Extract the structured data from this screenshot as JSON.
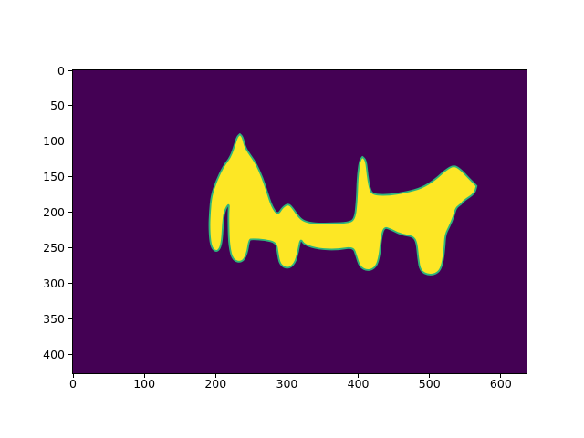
{
  "figure": {
    "title": "",
    "background_color": "#ffffff"
  },
  "chart_data": {
    "type": "heatmap",
    "subtype": "binary-segmentation-mask",
    "description": "matplotlib imshow of a binary segmentation mask with viridis colormap: a yellow connected region (value 1) shaped like two animals (left: cat-like animal with a pointed ear facing left; right: dog facing right with raised tail) on a dark purple background (value 0)",
    "title": "",
    "xlabel": "",
    "ylabel": "",
    "grid": false,
    "legend": null,
    "x_ticks": [
      0,
      100,
      200,
      300,
      400,
      500,
      600
    ],
    "y_ticks": [
      0,
      50,
      100,
      150,
      200,
      250,
      300,
      350,
      400
    ],
    "x_range": [
      0,
      636
    ],
    "y_range": [
      0,
      427
    ],
    "colors": {
      "background_value_0": "#440154",
      "mask_value_1": "#fde725",
      "mask_edge_antialias": "#2fb47c",
      "tick_color": "#000000",
      "spine_color": "#000000"
    },
    "mask_polygon_data_coords": [
      [
        234,
        90
      ],
      [
        234,
        90
      ],
      [
        238,
        94
      ],
      [
        241,
        107
      ],
      [
        246,
        116
      ],
      [
        256,
        130
      ],
      [
        266,
        152
      ],
      [
        273,
        174
      ],
      [
        279,
        192
      ],
      [
        287,
        204
      ],
      [
        294,
        193
      ],
      [
        302,
        188
      ],
      [
        308,
        194
      ],
      [
        316,
        206
      ],
      [
        324,
        213
      ],
      [
        339,
        216
      ],
      [
        358,
        216
      ],
      [
        384,
        215
      ],
      [
        395,
        211
      ],
      [
        398,
        184
      ],
      [
        399,
        152
      ],
      [
        402,
        127
      ],
      [
        406,
        122
      ],
      [
        406,
        122
      ],
      [
        411,
        127
      ],
      [
        413,
        148
      ],
      [
        416,
        166
      ],
      [
        420,
        175
      ],
      [
        441,
        176
      ],
      [
        467,
        172
      ],
      [
        489,
        166
      ],
      [
        508,
        154
      ],
      [
        523,
        140
      ],
      [
        534,
        134
      ],
      [
        543,
        139
      ],
      [
        555,
        152
      ],
      [
        566,
        163
      ],
      [
        566,
        163
      ],
      [
        563,
        174
      ],
      [
        549,
        183
      ],
      [
        544,
        189
      ],
      [
        537,
        194
      ],
      [
        534,
        206
      ],
      [
        528,
        220
      ],
      [
        522,
        232
      ],
      [
        521,
        251
      ],
      [
        518,
        274
      ],
      [
        512,
        286
      ],
      [
        499,
        289
      ],
      [
        487,
        283
      ],
      [
        484,
        265
      ],
      [
        482,
        243
      ],
      [
        477,
        234
      ],
      [
        461,
        232
      ],
      [
        445,
        224
      ],
      [
        436,
        221
      ],
      [
        432,
        238
      ],
      [
        430,
        261
      ],
      [
        425,
        278
      ],
      [
        413,
        283
      ],
      [
        402,
        277
      ],
      [
        397,
        261
      ],
      [
        393,
        249
      ],
      [
        371,
        253
      ],
      [
        345,
        252
      ],
      [
        324,
        246
      ],
      [
        319,
        237
      ],
      [
        316,
        255
      ],
      [
        311,
        273
      ],
      [
        301,
        280
      ],
      [
        290,
        274
      ],
      [
        287,
        257
      ],
      [
        285,
        243
      ],
      [
        269,
        239
      ],
      [
        251,
        238
      ],
      [
        247,
        239
      ],
      [
        244,
        259
      ],
      [
        237,
        271
      ],
      [
        224,
        268
      ],
      [
        219,
        248
      ],
      [
        218,
        220
      ],
      [
        218,
        199
      ],
      [
        219,
        187
      ],
      [
        212,
        199
      ],
      [
        210,
        220
      ],
      [
        209,
        239
      ],
      [
        206,
        252
      ],
      [
        200,
        256
      ],
      [
        193,
        248
      ],
      [
        191,
        222
      ],
      [
        192,
        199
      ],
      [
        194,
        177
      ],
      [
        201,
        156
      ],
      [
        211,
        135
      ],
      [
        221,
        122
      ],
      [
        227,
        104
      ],
      [
        230,
        94
      ]
    ]
  }
}
